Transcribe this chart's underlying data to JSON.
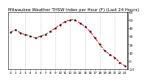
{
  "title": "Milwaukee Weather THSW Index per Hour (F) (Last 24 Hours)",
  "hours": [
    0,
    1,
    2,
    3,
    4,
    5,
    6,
    7,
    8,
    9,
    10,
    11,
    12,
    13,
    14,
    15,
    16,
    17,
    18,
    19,
    20,
    21,
    22,
    23
  ],
  "values": [
    35,
    38,
    34,
    32,
    30,
    28,
    30,
    32,
    36,
    40,
    44,
    48,
    50,
    50,
    46,
    42,
    36,
    28,
    20,
    12,
    8,
    4,
    -2,
    -6
  ],
  "line_color": "#dd0000",
  "marker_color": "#000000",
  "bg_color": "#ffffff",
  "grid_color": "#888888",
  "ylim": [
    -10,
    60
  ],
  "yticks": [
    -10,
    0,
    10,
    20,
    30,
    40,
    50,
    60
  ],
  "xticks": [
    0,
    1,
    2,
    3,
    4,
    5,
    6,
    7,
    8,
    9,
    10,
    11,
    12,
    13,
    14,
    15,
    16,
    17,
    18,
    19,
    20,
    21,
    22,
    23
  ],
  "ylabel_fontsize": 3.2,
  "xlabel_fontsize": 3.0,
  "title_fontsize": 3.8,
  "linewidth": 0.7,
  "markersize": 1.1
}
